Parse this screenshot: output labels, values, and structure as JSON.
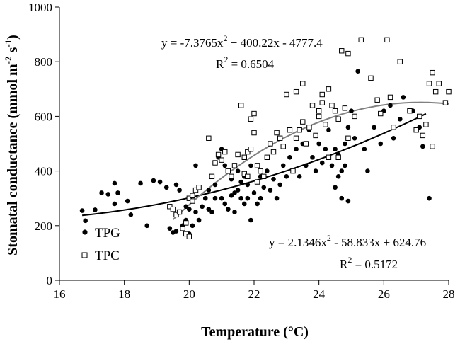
{
  "chart_data": {
    "type": "scatter",
    "xlabel": "Temperature (°C)",
    "ylabel_main": "Stomatal conductance (mmol m",
    "ylabel_exp1": "-2",
    "ylabel_mid": " s",
    "ylabel_exp2": "-1",
    "ylabel_end": ")",
    "xlim": [
      16,
      28
    ],
    "ylim": [
      0,
      1000
    ],
    "x_ticks": [
      "16",
      "18",
      "20",
      "22",
      "24",
      "26",
      "28"
    ],
    "y_ticks": [
      "0",
      "200",
      "400",
      "600",
      "800",
      "1000"
    ],
    "series": [
      {
        "name": "TPG",
        "marker": "filled-circle",
        "color": "#000000",
        "trend_color": "#000000",
        "trendline": {
          "a": 2.1346,
          "b": -58.833,
          "c": 624.76,
          "x_range": [
            16.7,
            27.3
          ]
        },
        "equation": {
          "prefix": "y = 2.1346x",
          "exp": "2",
          "suffix": " - 58.833x + 624.76"
        },
        "r2": {
          "prefix": "R",
          "exp": "2",
          "suffix": " = 0.5172"
        },
        "points": [
          [
            16.7,
            255
          ],
          [
            16.8,
            218
          ],
          [
            17.1,
            258
          ],
          [
            17.3,
            320
          ],
          [
            17.5,
            315
          ],
          [
            17.7,
            355
          ],
          [
            17.7,
            280
          ],
          [
            17.8,
            320
          ],
          [
            18.1,
            290
          ],
          [
            18.2,
            240
          ],
          [
            18.5,
            355
          ],
          [
            18.7,
            200
          ],
          [
            18.9,
            365
          ],
          [
            19.1,
            360
          ],
          [
            19.3,
            340
          ],
          [
            19.6,
            350
          ],
          [
            19.7,
            330
          ],
          [
            19.4,
            190
          ],
          [
            19.5,
            175
          ],
          [
            19.6,
            180
          ],
          [
            19.8,
            200
          ],
          [
            19.9,
            220
          ],
          [
            19.9,
            270
          ],
          [
            20.0,
            170
          ],
          [
            20.0,
            260
          ],
          [
            20.1,
            200
          ],
          [
            20.2,
            250
          ],
          [
            20.3,
            220
          ],
          [
            20.2,
            420
          ],
          [
            20.4,
            270
          ],
          [
            20.5,
            300
          ],
          [
            20.6,
            330
          ],
          [
            20.6,
            260
          ],
          [
            20.7,
            250
          ],
          [
            20.8,
            300
          ],
          [
            20.8,
            350
          ],
          [
            20.9,
            450
          ],
          [
            21.0,
            480
          ],
          [
            21.0,
            300
          ],
          [
            21.1,
            280
          ],
          [
            21.1,
            420
          ],
          [
            21.2,
            260
          ],
          [
            21.3,
            310
          ],
          [
            21.3,
            370
          ],
          [
            21.4,
            320
          ],
          [
            21.4,
            250
          ],
          [
            21.5,
            400
          ],
          [
            21.5,
            330
          ],
          [
            21.6,
            300
          ],
          [
            21.6,
            360
          ],
          [
            21.7,
            380
          ],
          [
            21.7,
            280
          ],
          [
            21.8,
            300
          ],
          [
            21.8,
            350
          ],
          [
            21.9,
            220
          ],
          [
            21.9,
            420
          ],
          [
            22.0,
            320
          ],
          [
            22.1,
            360
          ],
          [
            22.1,
            280
          ],
          [
            22.2,
            380
          ],
          [
            22.2,
            300
          ],
          [
            22.3,
            340
          ],
          [
            22.4,
            400
          ],
          [
            22.5,
            330
          ],
          [
            22.6,
            370
          ],
          [
            22.7,
            300
          ],
          [
            22.8,
            350
          ],
          [
            22.9,
            420
          ],
          [
            23.0,
            380
          ],
          [
            23.1,
            450
          ],
          [
            23.2,
            400
          ],
          [
            23.3,
            480
          ],
          [
            23.4,
            380
          ],
          [
            23.5,
            500
          ],
          [
            23.6,
            420
          ],
          [
            23.7,
            550
          ],
          [
            23.8,
            450
          ],
          [
            23.9,
            400
          ],
          [
            24.0,
            500
          ],
          [
            24.1,
            430
          ],
          [
            24.2,
            480
          ],
          [
            24.3,
            550
          ],
          [
            24.4,
            420
          ],
          [
            24.5,
            480
          ],
          [
            24.5,
            340
          ],
          [
            24.6,
            380
          ],
          [
            24.6,
            460
          ],
          [
            24.7,
            300
          ],
          [
            24.7,
            400
          ],
          [
            24.8,
            500
          ],
          [
            24.8,
            420
          ],
          [
            24.9,
            560
          ],
          [
            24.9,
            290
          ],
          [
            25.0,
            620
          ],
          [
            25.1,
            520
          ],
          [
            25.2,
            765
          ],
          [
            25.4,
            480
          ],
          [
            25.5,
            400
          ],
          [
            25.7,
            560
          ],
          [
            25.9,
            500
          ],
          [
            26.0,
            620
          ],
          [
            26.2,
            640
          ],
          [
            26.3,
            520
          ],
          [
            26.5,
            590
          ],
          [
            26.6,
            670
          ],
          [
            26.9,
            620
          ],
          [
            27.1,
            560
          ],
          [
            27.2,
            490
          ],
          [
            27.4,
            300
          ]
        ]
      },
      {
        "name": "TPC",
        "marker": "open-square",
        "color": "#000000",
        "trend_color": "#808080",
        "trendline": {
          "a": -7.3765,
          "b": 400.22,
          "c": -4777.4,
          "x_range": [
            19.5,
            28.0
          ]
        },
        "equation": {
          "prefix": "y = -7.3765x",
          "exp": "2",
          "suffix": " + 400.22x - 4777.4"
        },
        "r2": {
          "prefix": "R",
          "exp": "2",
          "suffix": " = 0.6504"
        },
        "points": [
          [
            19.4,
            270
          ],
          [
            19.5,
            260
          ],
          [
            19.6,
            240
          ],
          [
            19.7,
            250
          ],
          [
            19.8,
            190
          ],
          [
            19.9,
            210
          ],
          [
            19.9,
            170
          ],
          [
            20.0,
            160
          ],
          [
            20.0,
            300
          ],
          [
            20.1,
            290
          ],
          [
            20.1,
            310
          ],
          [
            20.2,
            330
          ],
          [
            20.3,
            340
          ],
          [
            20.6,
            520
          ],
          [
            20.7,
            380
          ],
          [
            20.8,
            430
          ],
          [
            20.9,
            460
          ],
          [
            21.0,
            440
          ],
          [
            21.1,
            470
          ],
          [
            21.2,
            400
          ],
          [
            21.3,
            380
          ],
          [
            21.4,
            420
          ],
          [
            21.5,
            460
          ],
          [
            21.6,
            640
          ],
          [
            21.7,
            450
          ],
          [
            21.7,
            390
          ],
          [
            21.8,
            380
          ],
          [
            21.8,
            470
          ],
          [
            21.9,
            480
          ],
          [
            21.9,
            590
          ],
          [
            22.0,
            610
          ],
          [
            22.0,
            540
          ],
          [
            22.1,
            420
          ],
          [
            22.1,
            360
          ],
          [
            22.2,
            400
          ],
          [
            22.3,
            380
          ],
          [
            22.4,
            450
          ],
          [
            22.5,
            500
          ],
          [
            22.6,
            470
          ],
          [
            22.7,
            540
          ],
          [
            22.8,
            520
          ],
          [
            22.9,
            490
          ],
          [
            23.0,
            680
          ],
          [
            23.1,
            550
          ],
          [
            23.2,
            400
          ],
          [
            23.3,
            520
          ],
          [
            23.3,
            690
          ],
          [
            23.4,
            550
          ],
          [
            23.5,
            720
          ],
          [
            23.5,
            580
          ],
          [
            23.6,
            500
          ],
          [
            23.7,
            560
          ],
          [
            23.8,
            640
          ],
          [
            23.9,
            530
          ],
          [
            24.0,
            620
          ],
          [
            24.0,
            600
          ],
          [
            24.1,
            680
          ],
          [
            24.1,
            650
          ],
          [
            24.2,
            570
          ],
          [
            24.3,
            700
          ],
          [
            24.3,
            450
          ],
          [
            24.4,
            640
          ],
          [
            24.5,
            620
          ],
          [
            24.6,
            590
          ],
          [
            24.6,
            450
          ],
          [
            24.7,
            840
          ],
          [
            24.8,
            630
          ],
          [
            24.9,
            830
          ],
          [
            24.9,
            520
          ],
          [
            25.1,
            600
          ],
          [
            25.3,
            880
          ],
          [
            25.6,
            740
          ],
          [
            25.8,
            660
          ],
          [
            25.9,
            610
          ],
          [
            26.1,
            880
          ],
          [
            26.2,
            670
          ],
          [
            26.3,
            560
          ],
          [
            26.5,
            800
          ],
          [
            26.8,
            620
          ],
          [
            27.0,
            550
          ],
          [
            27.1,
            600
          ],
          [
            27.2,
            530
          ],
          [
            27.3,
            570
          ],
          [
            27.4,
            720
          ],
          [
            27.5,
            760
          ],
          [
            27.6,
            690
          ],
          [
            27.7,
            720
          ],
          [
            27.9,
            650
          ],
          [
            28.0,
            690
          ],
          [
            27.5,
            490
          ]
        ]
      }
    ]
  }
}
